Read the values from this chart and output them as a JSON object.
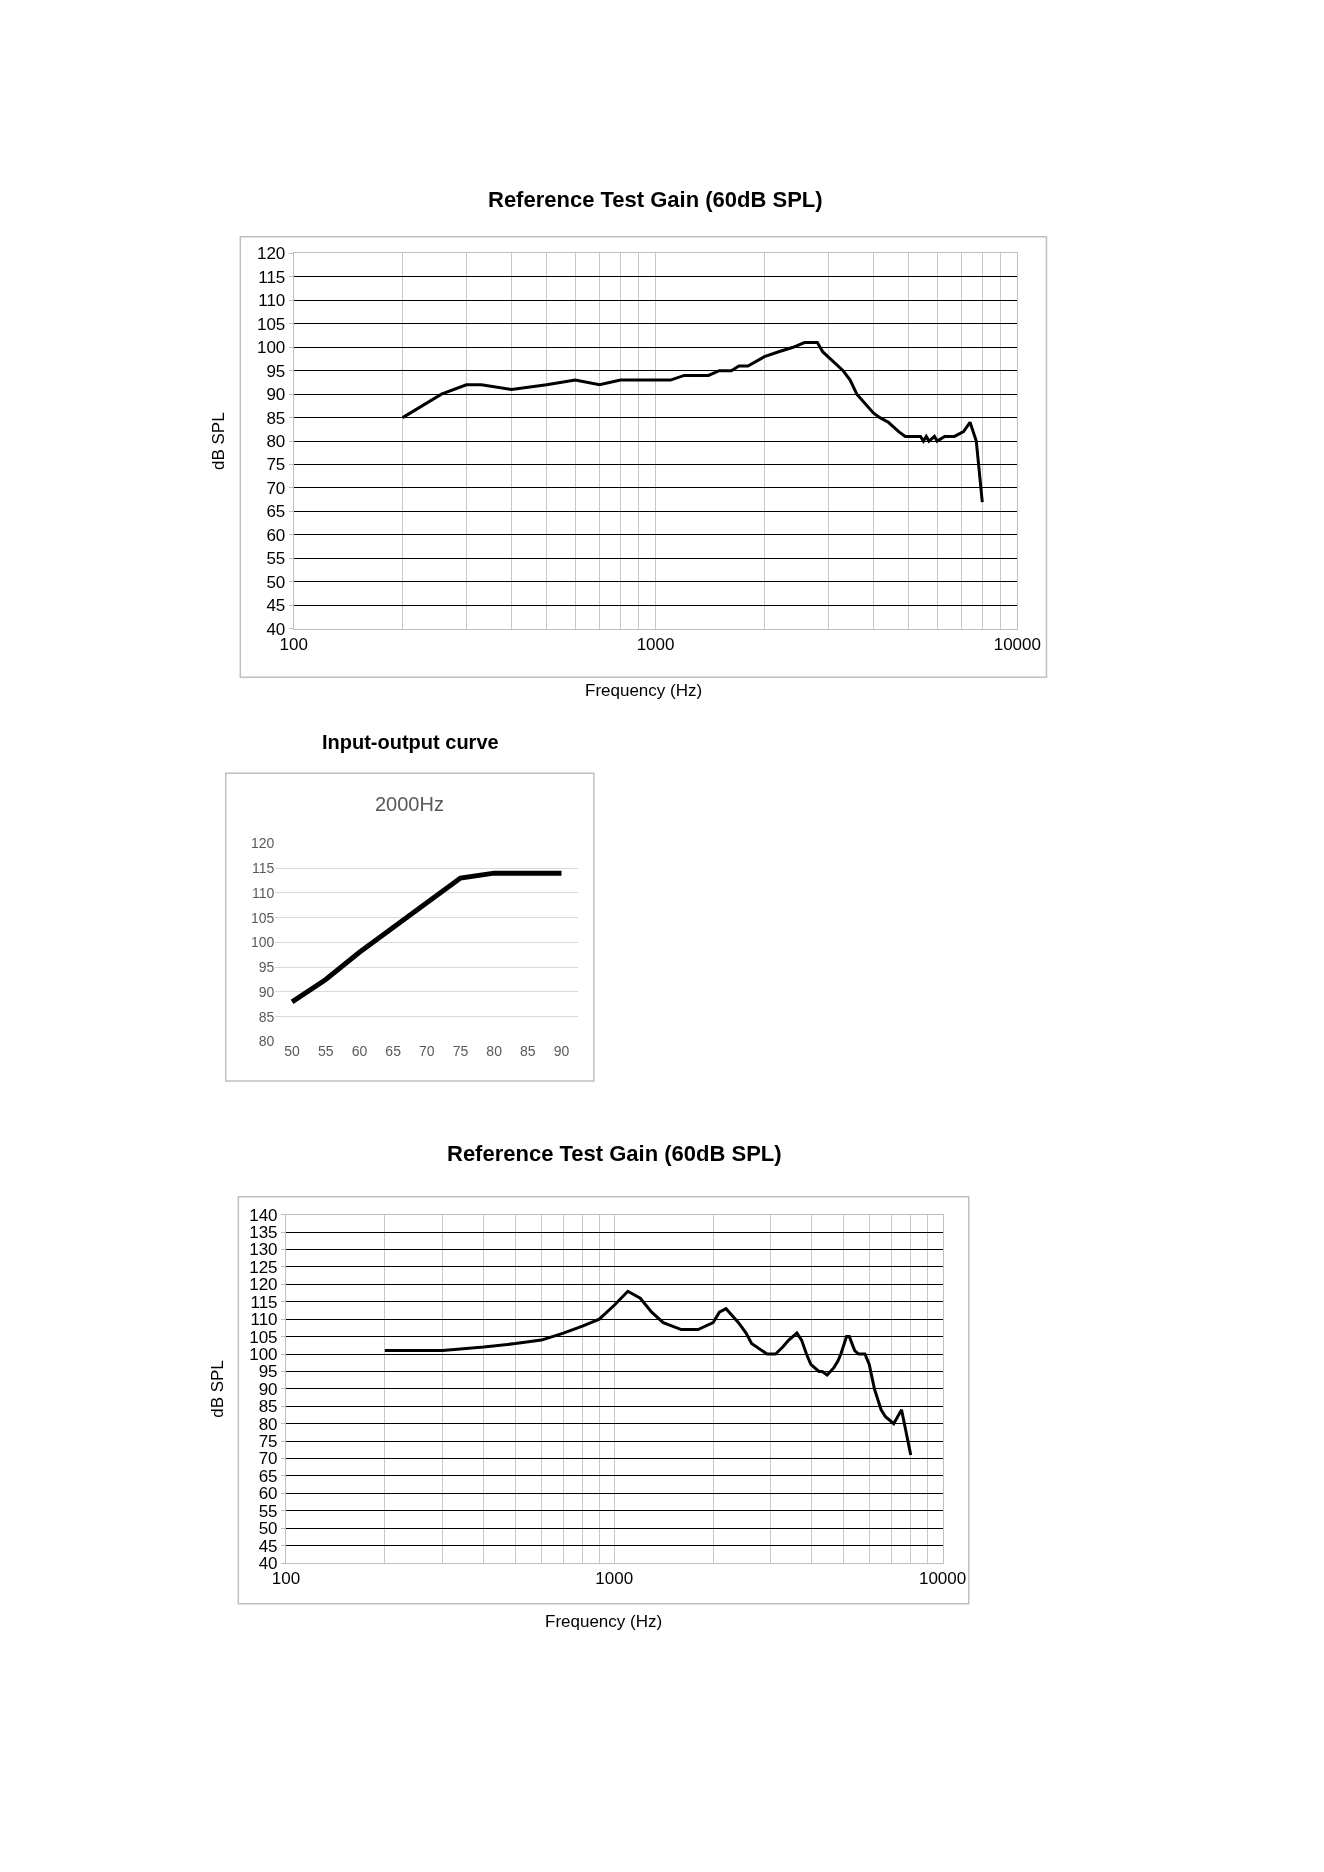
{
  "chart_data": [
    {
      "type": "line",
      "title": "Reference Test Gain (60dB SPL)",
      "xlabel": "Frequency (Hz)",
      "ylabel": "dB SPL",
      "log": "x",
      "grid": true,
      "marker": "none",
      "line_style": "solid",
      "xlim": [
        100,
        10000
      ],
      "xticks": [
        100,
        1000,
        10000
      ],
      "ylim": [
        40,
        120
      ],
      "yticks": [
        40,
        45,
        50,
        55,
        60,
        65,
        70,
        75,
        80,
        85,
        90,
        95,
        100,
        105,
        110,
        115,
        120
      ],
      "x": [
        200,
        256,
        300,
        330,
        400,
        500,
        600,
        700,
        800,
        1000,
        1100,
        1200,
        1400,
        1500,
        1620,
        1700,
        1800,
        2000,
        2180,
        2400,
        2580,
        2800,
        2900,
        3300,
        3450,
        3600,
        4000,
        4170,
        4400,
        4700,
        4900,
        5400,
        5500,
        5600,
        5700,
        5900,
        6000,
        6300,
        6700,
        7100,
        7400,
        7700,
        8000
      ],
      "series": [
        {
          "color": "#000000",
          "values": [
            85,
            90,
            92,
            92,
            91,
            92,
            93,
            92,
            93,
            93,
            93,
            94,
            94,
            95,
            95,
            96,
            96,
            98,
            99,
            100,
            101,
            101,
            99,
            95,
            93,
            90,
            86,
            85,
            84,
            82,
            81,
            81,
            80,
            81,
            80,
            81,
            80,
            81,
            81,
            82,
            84,
            80,
            67
          ]
        }
      ]
    },
    {
      "type": "line",
      "title": "Input-output curve",
      "subtitle": "2000Hz",
      "grid": "y",
      "marker": "none",
      "line_style": "solid",
      "categories": [
        "50",
        "55",
        "60",
        "65",
        "70",
        "75",
        "80",
        "85",
        "90"
      ],
      "ylim": [
        80,
        120
      ],
      "yticks": [
        80,
        85,
        90,
        95,
        100,
        105,
        110,
        115,
        120
      ],
      "series": [
        {
          "color": "#000000",
          "values": [
            88,
            92.5,
            98,
            103,
            108,
            113,
            114,
            114,
            114
          ]
        }
      ]
    },
    {
      "type": "line",
      "title": "Reference Test Gain (60dB SPL)",
      "xlabel": "Frequency (Hz)",
      "ylabel": "dB SPL",
      "log": "x",
      "grid": true,
      "marker": "none",
      "line_style": "solid",
      "xlim": [
        100,
        10000
      ],
      "xticks": [
        100,
        1000,
        10000
      ],
      "ylim": [
        40,
        140
      ],
      "yticks": [
        40,
        45,
        50,
        55,
        60,
        65,
        70,
        75,
        80,
        85,
        90,
        95,
        100,
        105,
        110,
        115,
        120,
        125,
        130,
        135,
        140
      ],
      "x": [
        200,
        300,
        400,
        500,
        600,
        700,
        800,
        900,
        1000,
        1100,
        1200,
        1300,
        1410,
        1600,
        1800,
        2000,
        2090,
        2190,
        2390,
        2520,
        2620,
        2920,
        3100,
        3260,
        3400,
        3600,
        3720,
        3850,
        3970,
        4200,
        4300,
        4450,
        4660,
        4800,
        4900,
        5100,
        5200,
        5400,
        5550,
        5800,
        5980,
        6200,
        6500,
        6700,
        7100,
        7500,
        8000
      ],
      "series": [
        {
          "color": "#000000",
          "values": [
            101,
            101,
            102,
            103,
            104,
            106,
            108,
            110,
            114,
            118,
            116,
            112,
            109,
            107,
            107,
            109,
            112,
            113,
            109,
            106,
            103,
            100,
            100,
            102,
            104,
            106,
            104,
            100,
            97,
            95,
            95,
            94,
            96,
            98,
            100,
            105,
            105,
            101,
            100,
            100,
            97,
            90,
            84,
            82,
            80,
            84,
            71
          ]
        }
      ]
    }
  ]
}
